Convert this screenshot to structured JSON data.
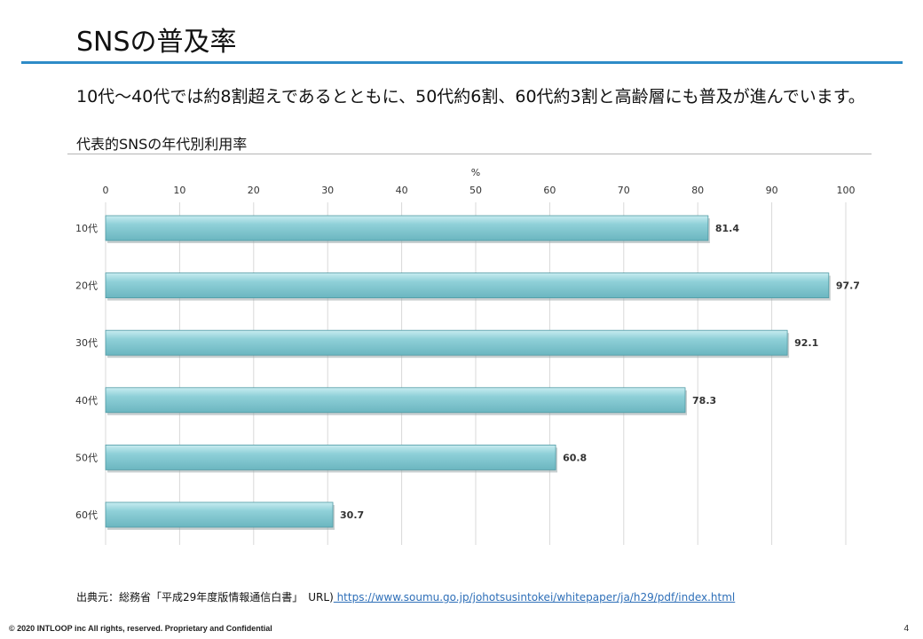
{
  "slide": {
    "title": "SNSの普及率",
    "headline": "10代～40代では約8割超えであるとともに、50代約6割、60代約3割と高齢層にも普及が進んでいます。",
    "chart_heading": "代表的SNSの年代別利用率",
    "source_label": "出典元：総務省「平成29年度版情報通信白書」　URL)",
    "source_url": " https://www.soumu.go.jp/johotsusintokei/whitepaper/ja/h29/pdf/index.html",
    "footer": "© 2020 INTLOOP inc All rights, reserved.  Proprietary and Confidential",
    "page_number": "4"
  },
  "colors": {
    "accent_rule": "#2e8bc7",
    "bar_fill": "#7fc6cf",
    "bar_edge": "#4f9aa4"
  },
  "chart_data": {
    "type": "bar",
    "orientation": "horizontal",
    "unit_label": "%",
    "categories": [
      "10代",
      "20代",
      "30代",
      "40代",
      "50代",
      "60代"
    ],
    "values": [
      81.4,
      97.7,
      92.1,
      78.3,
      60.8,
      30.7
    ],
    "data_labels": [
      "81.4",
      "97.7",
      "92.1",
      "78.3",
      "60.8",
      "30.7"
    ],
    "xlim": [
      0,
      100
    ],
    "ticks": [
      0,
      10,
      20,
      30,
      40,
      50,
      60,
      70,
      80,
      90,
      100
    ],
    "tick_labels": [
      "0",
      "10",
      "20",
      "30",
      "40",
      "50",
      "60",
      "70",
      "80",
      "90",
      "100"
    ],
    "grid": true,
    "axis_position": "top"
  }
}
